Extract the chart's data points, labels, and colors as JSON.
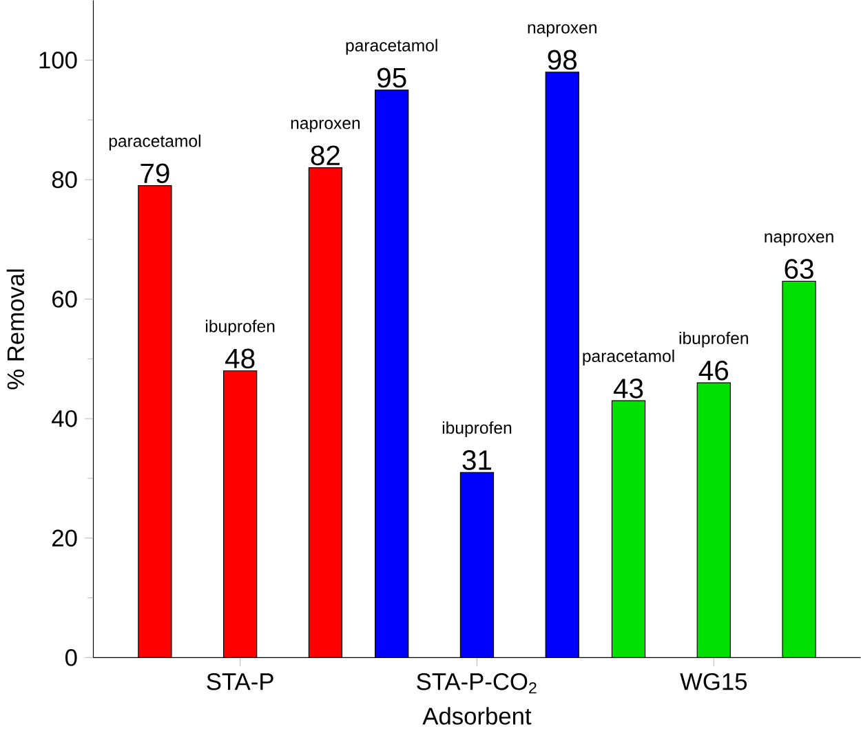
{
  "chart_data": {
    "type": "bar",
    "xlabel": "Adsorbent",
    "ylabel": "% Removal",
    "categories": [
      "STA-P",
      "STA-P-CO$_{2}$",
      "WG15"
    ],
    "series": [
      {
        "name": "paracetamol",
        "colors": [
          "#ff0000",
          "#0000ff",
          "#00e000"
        ],
        "values": [
          79,
          95,
          43
        ]
      },
      {
        "name": "ibuprofen",
        "colors": [
          "#ff0000",
          "#0000ff",
          "#00e000"
        ],
        "values": [
          48,
          31,
          46
        ]
      },
      {
        "name": "naproxen",
        "colors": [
          "#ff0000",
          "#0000ff",
          "#00e000"
        ],
        "values": [
          82,
          98,
          63
        ]
      }
    ],
    "ylim": [
      0,
      110
    ],
    "yticks": [
      0,
      20,
      40,
      60,
      80,
      100
    ],
    "data_labels": true,
    "grid": false
  }
}
